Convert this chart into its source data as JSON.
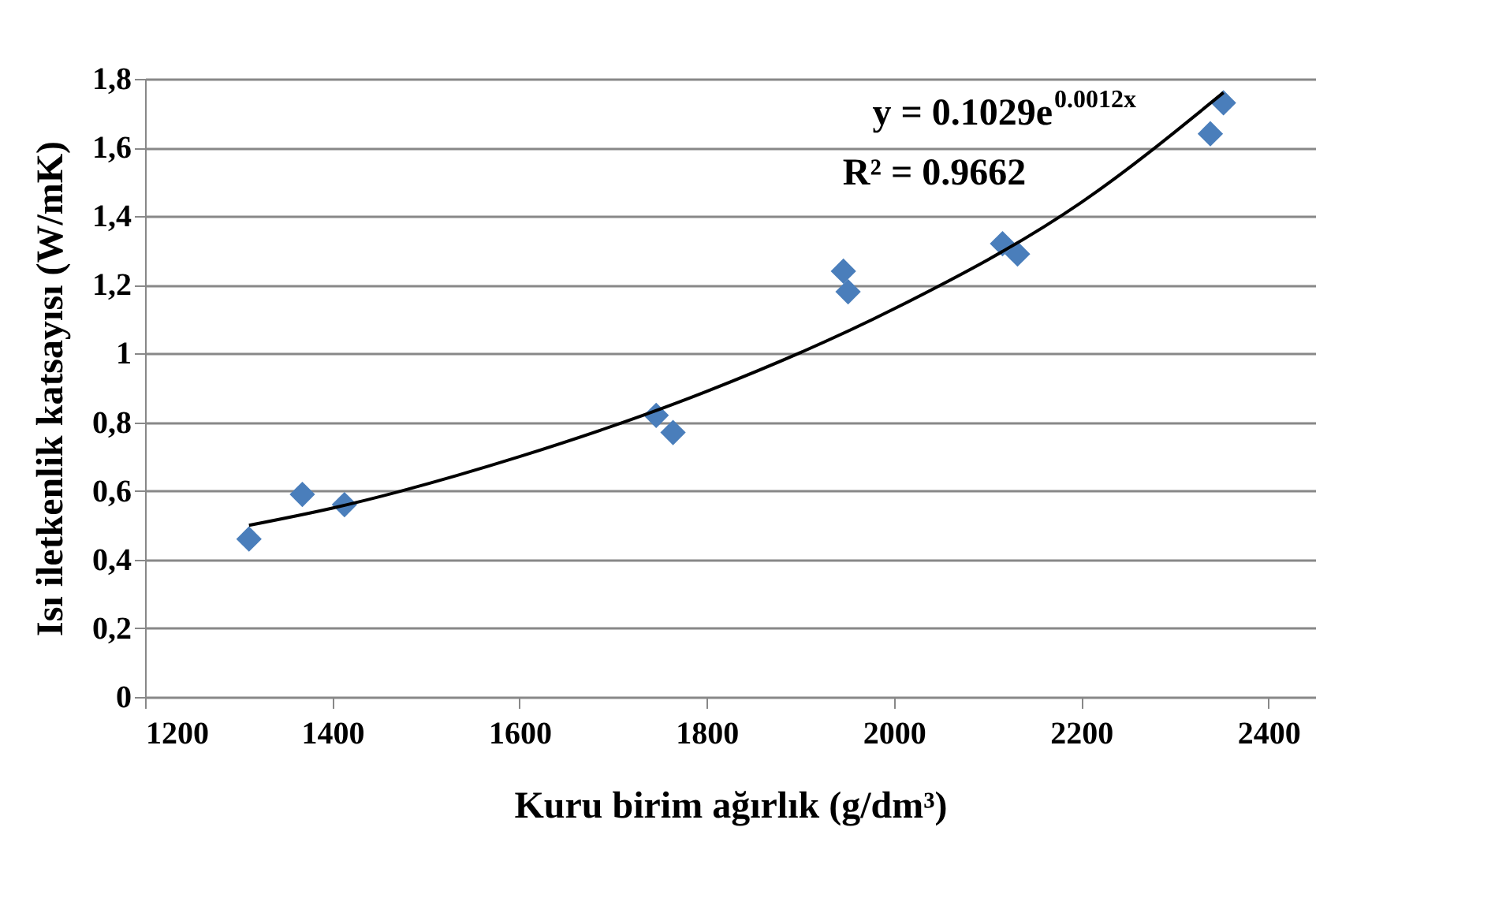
{
  "chart_data": {
    "type": "scatter",
    "xlabel": "Kuru birim ağırlık (g/dm³)",
    "ylabel": "Isı iletkenlik katsayısı (W/mK)",
    "series": [
      {
        "color": "#4a7ebb",
        "marker": "diamond",
        "x": [
          1311,
          1368,
          1413,
          1746,
          1764,
          1946,
          1951,
          2116,
          2132,
          2338,
          2352
        ],
        "values": [
          0.46,
          0.59,
          0.56,
          0.82,
          0.77,
          1.24,
          1.18,
          1.32,
          1.29,
          1.64,
          1.73
        ]
      },
      {
        "type": "line",
        "color": "#000000",
        "marker": "none",
        "line_style": "solid",
        "x": [
          1311,
          1400,
          1600,
          1800,
          2000,
          2200,
          2352
        ],
        "values": [
          0.5,
          0.55,
          0.7,
          0.89,
          1.13,
          1.44,
          1.76
        ]
      }
    ],
    "annotations": [
      "y = 0.1029e$^{0.0012x}$",
      "R² = 0.9662"
    ],
    "xlim": [
      1200,
      2450
    ],
    "xticks": [
      1200,
      1400,
      1600,
      1800,
      2000,
      2200,
      2400
    ],
    "ylim": [
      0,
      1.8
    ],
    "yticks": [
      0,
      {
        "value": 0.2,
        "label": "0,2"
      },
      {
        "value": 0.4,
        "label": "0,4"
      },
      {
        "value": 0.6,
        "label": "0,6"
      },
      {
        "value": 0.8,
        "label": "0,8"
      },
      1,
      {
        "value": 1.2,
        "label": "1,2"
      },
      {
        "value": 1.4,
        "label": "1,4"
      },
      {
        "value": 1.6,
        "label": "1,6"
      },
      {
        "value": 1.8,
        "label": "1,8"
      }
    ],
    "grid": "y"
  }
}
